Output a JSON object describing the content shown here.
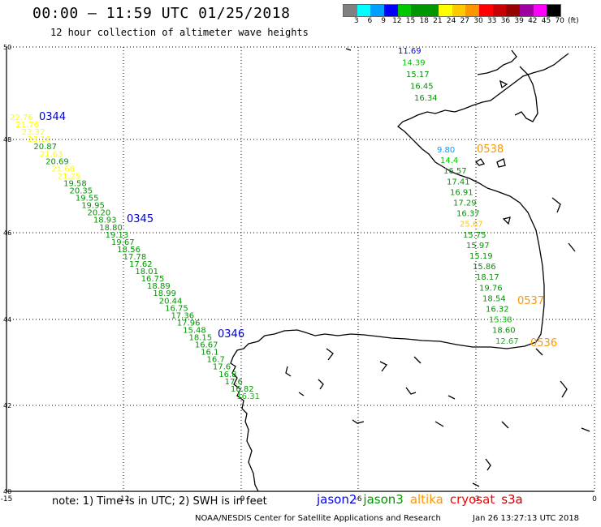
{
  "header": {
    "title": "00:00 – 11:59 UTC 01/25/2018",
    "subtitle": "12 hour collection of altimeter wave heights"
  },
  "colorbar": {
    "colors": [
      "#808080",
      "#00ffff",
      "#00a0ff",
      "#0000ff",
      "#00c800",
      "#009600",
      "#009600",
      "#ffff00",
      "#ffc800",
      "#ff9600",
      "#ff0000",
      "#c80000",
      "#960000",
      "#a000a0",
      "#ff00ff",
      "#000000"
    ],
    "labels": [
      "3",
      "6",
      "9",
      "12",
      "15",
      "18",
      "21",
      "24",
      "27",
      "30",
      "33",
      "36",
      "39",
      "42",
      "45",
      "70",
      "(ft)"
    ]
  },
  "axes": {
    "x_ticks": [
      "-15",
      "-12",
      "-9",
      "-6",
      "-3",
      "0"
    ],
    "y_ticks": [
      "50",
      "48",
      "46",
      "44",
      "42",
      "40"
    ]
  },
  "tracks": {
    "west": [
      {
        "text": "22.76",
        "color": "#ffff00"
      },
      {
        "text": "21.76",
        "color": "#ffff00"
      },
      {
        "text": "23.32",
        "color": "#ffff00"
      },
      {
        "text": "23.10",
        "color": "#ffff00"
      },
      {
        "text": "20.87",
        "color": "#009600"
      },
      {
        "text": "21.63",
        "color": "#ffff00"
      },
      {
        "text": "20.69",
        "color": "#009600"
      },
      {
        "text": "21.68",
        "color": "#ffff00"
      },
      {
        "text": "21.25",
        "color": "#ffff00"
      },
      {
        "text": "19.58",
        "color": "#009600"
      },
      {
        "text": "20.35",
        "color": "#009600"
      },
      {
        "text": "19.55",
        "color": "#009600"
      },
      {
        "text": "19.95",
        "color": "#009600"
      },
      {
        "text": "20.20",
        "color": "#009600"
      },
      {
        "text": "18.93",
        "color": "#009600"
      },
      {
        "text": "18.80",
        "color": "#009600"
      },
      {
        "text": "19.13",
        "color": "#009600"
      },
      {
        "text": "19.67",
        "color": "#009600"
      },
      {
        "text": "18.56",
        "color": "#009600"
      },
      {
        "text": "17.78",
        "color": "#009600"
      },
      {
        "text": "17.62",
        "color": "#009600"
      },
      {
        "text": "18.01",
        "color": "#009600"
      },
      {
        "text": "16.75",
        "color": "#009600"
      },
      {
        "text": "18.89",
        "color": "#009600"
      },
      {
        "text": "18.99",
        "color": "#009600"
      },
      {
        "text": "20.44",
        "color": "#009600"
      },
      {
        "text": "16.75",
        "color": "#009600"
      },
      {
        "text": "17.36",
        "color": "#009600"
      },
      {
        "text": "17.96",
        "color": "#009600"
      },
      {
        "text": "15.48",
        "color": "#009600"
      },
      {
        "text": "18.15",
        "color": "#009600"
      },
      {
        "text": "16.67",
        "color": "#009600"
      },
      {
        "text": "16.1",
        "color": "#009600"
      },
      {
        "text": "16.7",
        "color": "#009600"
      },
      {
        "text": "17.6",
        "color": "#009600"
      },
      {
        "text": "16.8",
        "color": "#009600"
      },
      {
        "text": "17.6",
        "color": "#009600"
      },
      {
        "text": "16.82",
        "color": "#009600"
      },
      {
        "text": "16.31",
        "color": "#00c800"
      }
    ],
    "north": [
      {
        "text": "11.69",
        "color": "#0000ff"
      },
      {
        "text": "14.39",
        "color": "#00c800"
      },
      {
        "text": "15.17",
        "color": "#009600"
      },
      {
        "text": "16.45",
        "color": "#009600"
      },
      {
        "text": "16.34",
        "color": "#009600"
      }
    ],
    "east": [
      {
        "text": "9.80",
        "color": "#00a0ff"
      },
      {
        "text": "14.4",
        "color": "#00c800"
      },
      {
        "text": "16.57",
        "color": "#009600"
      },
      {
        "text": "17.41",
        "color": "#009600"
      },
      {
        "text": "16.91",
        "color": "#009600"
      },
      {
        "text": "17.29",
        "color": "#009600"
      },
      {
        "text": "16.37",
        "color": "#009600"
      },
      {
        "text": "25.67",
        "color": "#ffc800"
      },
      {
        "text": "15.75",
        "color": "#009600"
      },
      {
        "text": "15.97",
        "color": "#009600"
      },
      {
        "text": "15.19",
        "color": "#009600"
      },
      {
        "text": "15.86",
        "color": "#009600"
      },
      {
        "text": "18.17",
        "color": "#009600"
      },
      {
        "text": "19.76",
        "color": "#009600"
      },
      {
        "text": "18.54",
        "color": "#009600"
      },
      {
        "text": "16.32",
        "color": "#009600"
      },
      {
        "text": "15.38",
        "color": "#00c800"
      },
      {
        "text": "18.60",
        "color": "#009600"
      },
      {
        "text": "12.67",
        "color": "#00c800"
      }
    ]
  },
  "time_labels": [
    {
      "text": "0344",
      "color": "#0000c8"
    },
    {
      "text": "0345",
      "color": "#0000c8"
    },
    {
      "text": "0346",
      "color": "#0000c8"
    },
    {
      "text": "0538",
      "color": "#ff9600"
    },
    {
      "text": "0537",
      "color": "#ff9600"
    },
    {
      "text": "0536",
      "color": "#ff9600"
    }
  ],
  "note": "note:  1) Time is in UTC;  2) SWH is in feet",
  "satellites": [
    {
      "name": "jason2",
      "color": "#0000ff"
    },
    {
      "name": "jason3",
      "color": "#009600"
    },
    {
      "name": "altika",
      "color": "#ff9600"
    },
    {
      "name": "cryosat",
      "color": "#ff0000"
    },
    {
      "name": "s3a",
      "color": "#c80000"
    }
  ],
  "footer": {
    "credit": "NOAA/NESDIS Center for Satellite Applications and Research",
    "timestamp": "Jan 26 13:27:13 UTC 2018"
  }
}
